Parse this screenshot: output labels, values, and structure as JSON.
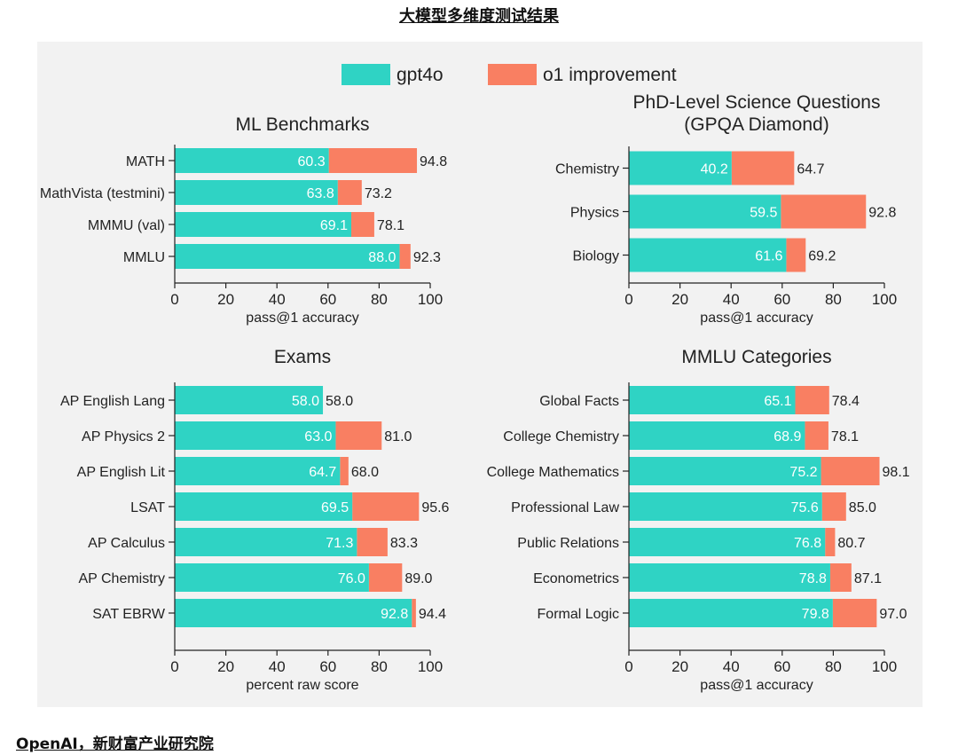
{
  "page_title": "大模型多维度测试结果",
  "footer_source": "OpenAI，新财富产业研究院",
  "colors": {
    "gpt4o": "#2fd3c4",
    "o1": "#f97f62",
    "panel": "#f2f2f2",
    "text": "#222222"
  },
  "legend": [
    "gpt4o",
    "o1 improvement"
  ],
  "chart_data": [
    {
      "type": "bar",
      "title": "ML Benchmarks",
      "categories": [
        "MATH",
        "MathVista (testmini)",
        "MMMU (val)",
        "MMLU"
      ],
      "series": [
        {
          "name": "gpt4o",
          "values": [
            60.3,
            63.8,
            69.1,
            88.0
          ]
        },
        {
          "name": "o1 improvement",
          "values": [
            94.8,
            73.2,
            78.1,
            92.3
          ]
        }
      ],
      "xlabel": "pass@1 accuracy",
      "xlim": [
        0,
        100
      ],
      "ticks": [
        0,
        20,
        40,
        60,
        80,
        100
      ]
    },
    {
      "type": "bar",
      "title": "PhD-Level Science Questions (GPQA Diamond)",
      "title_lines": [
        "PhD-Level Science Questions",
        "(GPQA Diamond)"
      ],
      "categories": [
        "Chemistry",
        "Physics",
        "Biology"
      ],
      "series": [
        {
          "name": "gpt4o",
          "values": [
            40.2,
            59.5,
            61.6
          ]
        },
        {
          "name": "o1 improvement",
          "values": [
            64.7,
            92.8,
            69.2
          ]
        }
      ],
      "xlabel": "pass@1 accuracy",
      "xlim": [
        0,
        100
      ],
      "ticks": [
        0,
        20,
        40,
        60,
        80,
        100
      ]
    },
    {
      "type": "bar",
      "title": "Exams",
      "categories": [
        "AP English Lang",
        "AP Physics 2",
        "AP English Lit",
        "LSAT",
        "AP Calculus",
        "AP Chemistry",
        "SAT EBRW"
      ],
      "series": [
        {
          "name": "gpt4o",
          "values": [
            58.0,
            63.0,
            64.7,
            69.5,
            71.3,
            76.0,
            92.8
          ]
        },
        {
          "name": "o1 improvement",
          "values": [
            58.0,
            81.0,
            68.0,
            95.6,
            83.3,
            89.0,
            94.4
          ]
        }
      ],
      "xlabel": "percent raw score",
      "xlim": [
        0,
        100
      ],
      "ticks": [
        0,
        20,
        40,
        60,
        80,
        100
      ]
    },
    {
      "type": "bar",
      "title": "MMLU Categories",
      "categories": [
        "Global Facts",
        "College Chemistry",
        "College Mathematics",
        "Professional Law",
        "Public Relations",
        "Econometrics",
        "Formal Logic"
      ],
      "series": [
        {
          "name": "gpt4o",
          "values": [
            65.1,
            68.9,
            75.2,
            75.6,
            76.8,
            78.8,
            79.8
          ]
        },
        {
          "name": "o1 improvement",
          "values": [
            78.4,
            78.1,
            98.1,
            85.0,
            80.7,
            87.1,
            97.0
          ]
        }
      ],
      "xlabel": "pass@1 accuracy",
      "xlim": [
        0,
        100
      ],
      "ticks": [
        0,
        20,
        40,
        60,
        80,
        100
      ]
    }
  ]
}
